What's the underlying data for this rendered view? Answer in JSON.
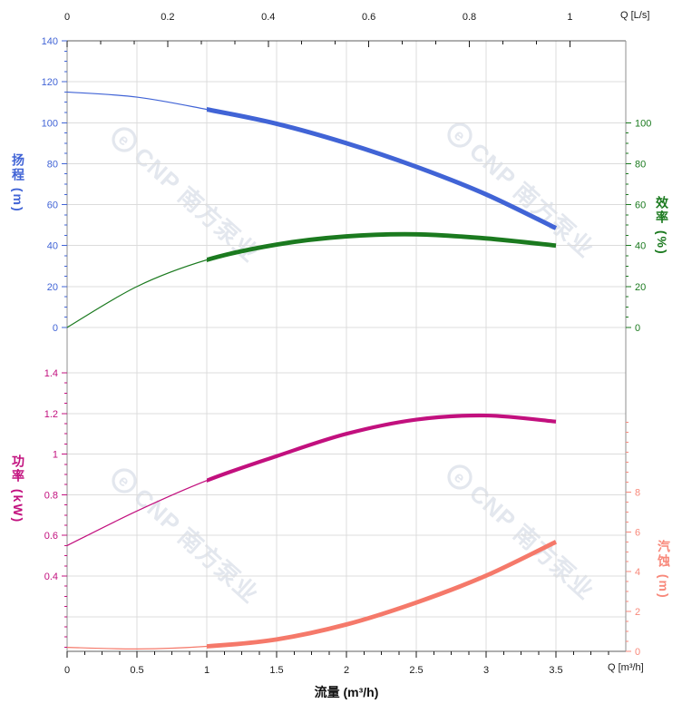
{
  "watermark": {
    "text": "CNP 南方泵业",
    "logo_glyph": "e",
    "color": "#e3e7ee"
  },
  "titles": {
    "flow": "流量 (m³/h)",
    "top_q": "Q [L/s]",
    "bottom_q": "Q [m³/h]",
    "head": "扬程 (m)",
    "efficiency": "效率 (%)",
    "power": "功率 (kW)",
    "npsh": "汽蚀 (m)"
  },
  "chart_data": {
    "type": "line",
    "x_label": "流量 (m³/h)",
    "x_unit": "m³/h",
    "x": [
      0,
      0.5,
      1,
      1.5,
      2,
      2.5,
      3,
      3.5
    ],
    "secondary_x_axis": {
      "unit_label": "Q [L/s]",
      "ticks": [
        0,
        0.2,
        0.4,
        0.6,
        0.8,
        1
      ],
      "m3h_per_Ls": 3.6
    },
    "bottom_x_axis": {
      "unit_label": "Q [m³/h]",
      "ticks": [
        0,
        0.5,
        1,
        1.5,
        2,
        2.5,
        3,
        3.5
      ],
      "max": 4
    },
    "rated_flow_range": [
      1,
      3.5
    ],
    "grid": true,
    "legend": "none",
    "series": [
      {
        "id": "head",
        "name": "扬程",
        "unit": "m",
        "color": "#4164d6",
        "axis_side": "top-left",
        "axis_ticks": [
          0,
          20,
          40,
          60,
          80,
          100,
          120,
          140
        ],
        "values": [
          115,
          112.5,
          106.5,
          99.5,
          90,
          78.5,
          65,
          48.5
        ]
      },
      {
        "id": "efficiency",
        "name": "效率",
        "unit": "%",
        "color": "#1b7a1f",
        "axis_side": "top-right",
        "axis_ticks": [
          0,
          20,
          40,
          60,
          80,
          100
        ],
        "values": [
          0,
          20,
          33,
          40.5,
          44.5,
          45.5,
          43.5,
          40
        ]
      },
      {
        "id": "power",
        "name": "功率",
        "unit": "kW",
        "color": "#c2107e",
        "axis_side": "bottom-left",
        "axis_ticks": [
          0.4,
          0.6,
          0.8,
          1,
          1.2,
          1.4
        ],
        "values": [
          0.55,
          0.72,
          0.87,
          0.99,
          1.1,
          1.17,
          1.19,
          1.16
        ]
      },
      {
        "id": "npsh",
        "name": "汽蚀",
        "unit": "m",
        "color": "#f5796a",
        "label_color": "#f8897b",
        "axis_side": "bottom-right",
        "axis_ticks": [
          0,
          2,
          4,
          6,
          8
        ],
        "values": [
          0.2,
          0.12,
          0.25,
          0.6,
          1.35,
          2.45,
          3.8,
          5.5
        ]
      }
    ]
  }
}
